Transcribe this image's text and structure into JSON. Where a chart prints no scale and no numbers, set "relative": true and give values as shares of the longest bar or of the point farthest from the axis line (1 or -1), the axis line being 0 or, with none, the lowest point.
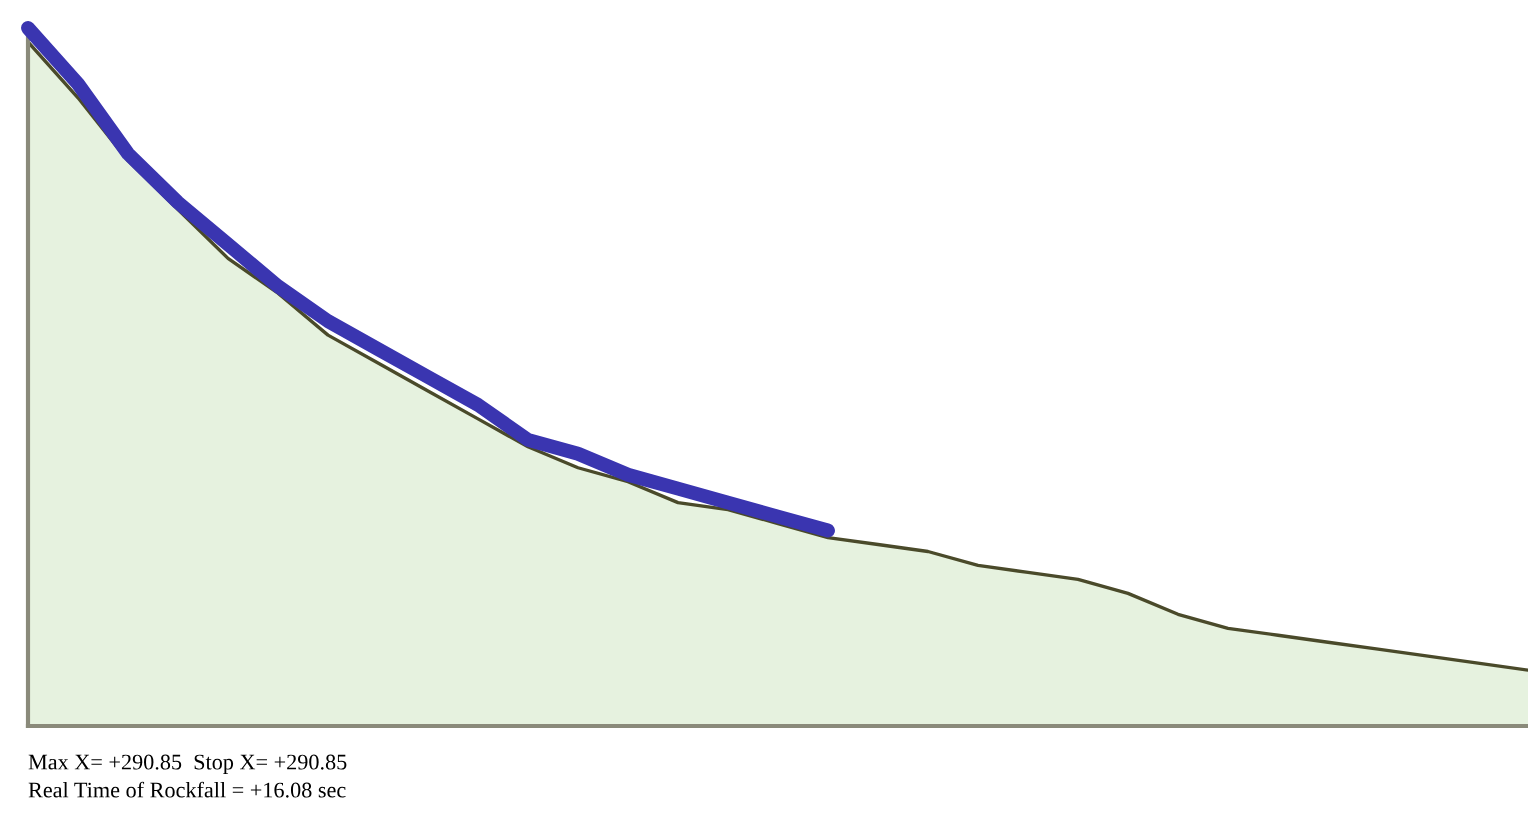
{
  "chart_data": {
    "type": "area",
    "relative": true,
    "categories": [
      null,
      null,
      null,
      null,
      null,
      null,
      null,
      null,
      null,
      null,
      null,
      null,
      null,
      null,
      null,
      null,
      null,
      null,
      null,
      null,
      null,
      null,
      null,
      null,
      null,
      null,
      null,
      null,
      null,
      null,
      null
    ],
    "series": [
      {
        "color": "#e6f2df",
        "values": [
          0.98,
          0.9,
          0.81,
          0.74,
          0.67,
          0.62,
          0.56,
          0.52,
          0.48,
          0.44,
          0.4,
          0.37,
          0.35,
          0.32,
          0.31,
          0.29,
          0.27,
          0.26,
          0.25,
          0.23,
          0.22,
          0.21,
          0.19,
          0.16,
          0.14,
          0.13,
          0.12,
          0.11,
          0.1,
          0.09,
          0.08
        ]
      },
      {
        "type": "line",
        "color": "#3a35b0",
        "values": [
          1.0,
          0.92,
          0.82,
          0.75,
          0.69,
          0.63,
          0.58,
          0.54,
          0.5,
          0.46,
          0.41,
          0.39,
          0.36,
          0.34,
          0.32,
          0.3,
          0.28,
          null,
          null,
          null,
          null,
          null,
          null,
          null,
          null,
          null,
          null,
          null,
          null,
          null,
          null
        ]
      }
    ],
    "annotations": [
      "Max X= +290.85  Stop X= +290.85",
      "Real Time of Rockfall = +16.08 sec"
    ]
  }
}
